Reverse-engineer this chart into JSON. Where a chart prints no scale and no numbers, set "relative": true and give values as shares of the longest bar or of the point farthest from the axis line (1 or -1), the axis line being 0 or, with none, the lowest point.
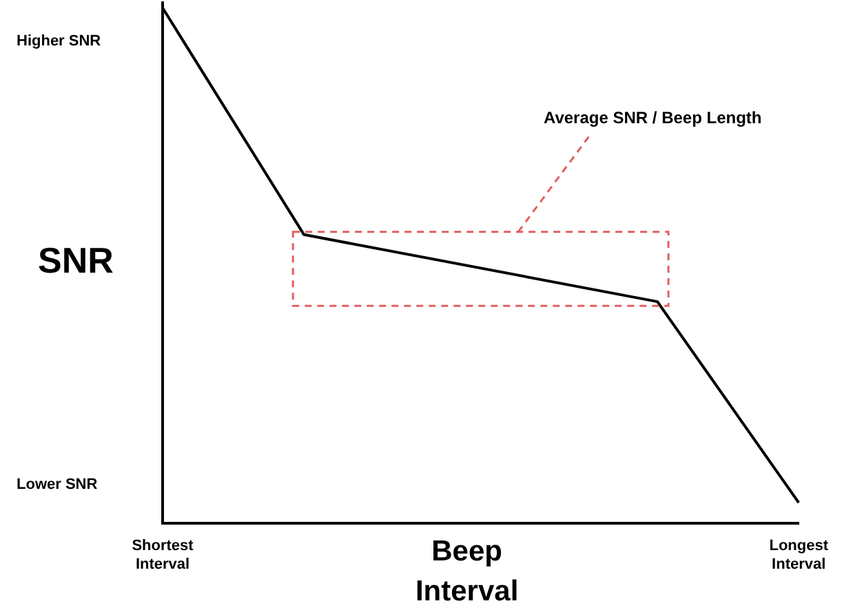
{
  "chart_data": {
    "type": "line",
    "xlabel": "Beep Interval",
    "ylabel": "SNR",
    "relative": true,
    "categories": [
      "Shortest Interval",
      null,
      null,
      null,
      null,
      null,
      null,
      null,
      null,
      "Longest Interval"
    ],
    "series": [
      {
        "color": "#000000",
        "values": [
          1,
          null,
          0.56,
          null,
          null,
          null,
          null,
          0.43,
          null,
          0.04
        ]
      }
    ],
    "annotations": [
      "Higher SNR",
      "Lower SNR",
      "Average SNR / Beep Length"
    ],
    "grid": false,
    "legend": false,
    "marker": "none",
    "line_style": "solid"
  }
}
